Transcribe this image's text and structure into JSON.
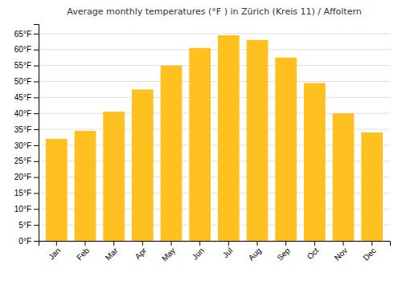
{
  "chart_data": {
    "type": "bar",
    "title": "Average monthly temperatures (°F ) in Zürich (Kreis 11) / Affoltern",
    "categories": [
      "Jan",
      "Feb",
      "Mar",
      "Apr",
      "May",
      "Jun",
      "Jul",
      "Aug",
      "Sep",
      "Oct",
      "Nov",
      "Dec"
    ],
    "values": [
      32,
      34.5,
      40.5,
      47.5,
      55,
      60.5,
      64.5,
      63,
      57.5,
      49.5,
      40,
      34
    ],
    "color": "#FFC020",
    "ylim": [
      0,
      68
    ],
    "yticks": [
      {
        "value": 0,
        "label": "0°F"
      },
      {
        "value": 5,
        "label": "5°F"
      },
      {
        "value": 10,
        "label": "10°F"
      },
      {
        "value": 15,
        "label": "15°F"
      },
      {
        "value": 20,
        "label": "20°F"
      },
      {
        "value": 25,
        "label": "25°F"
      },
      {
        "value": 30,
        "label": "30°F"
      },
      {
        "value": 35,
        "label": "35°F"
      },
      {
        "value": 40,
        "label": "40°F"
      },
      {
        "value": 45,
        "label": "45°F"
      },
      {
        "value": 50,
        "label": "50°F"
      },
      {
        "value": 55,
        "label": "55°F"
      },
      {
        "value": 60,
        "label": "60°F"
      },
      {
        "value": 65,
        "label": "65°F"
      }
    ],
    "grid": true
  }
}
